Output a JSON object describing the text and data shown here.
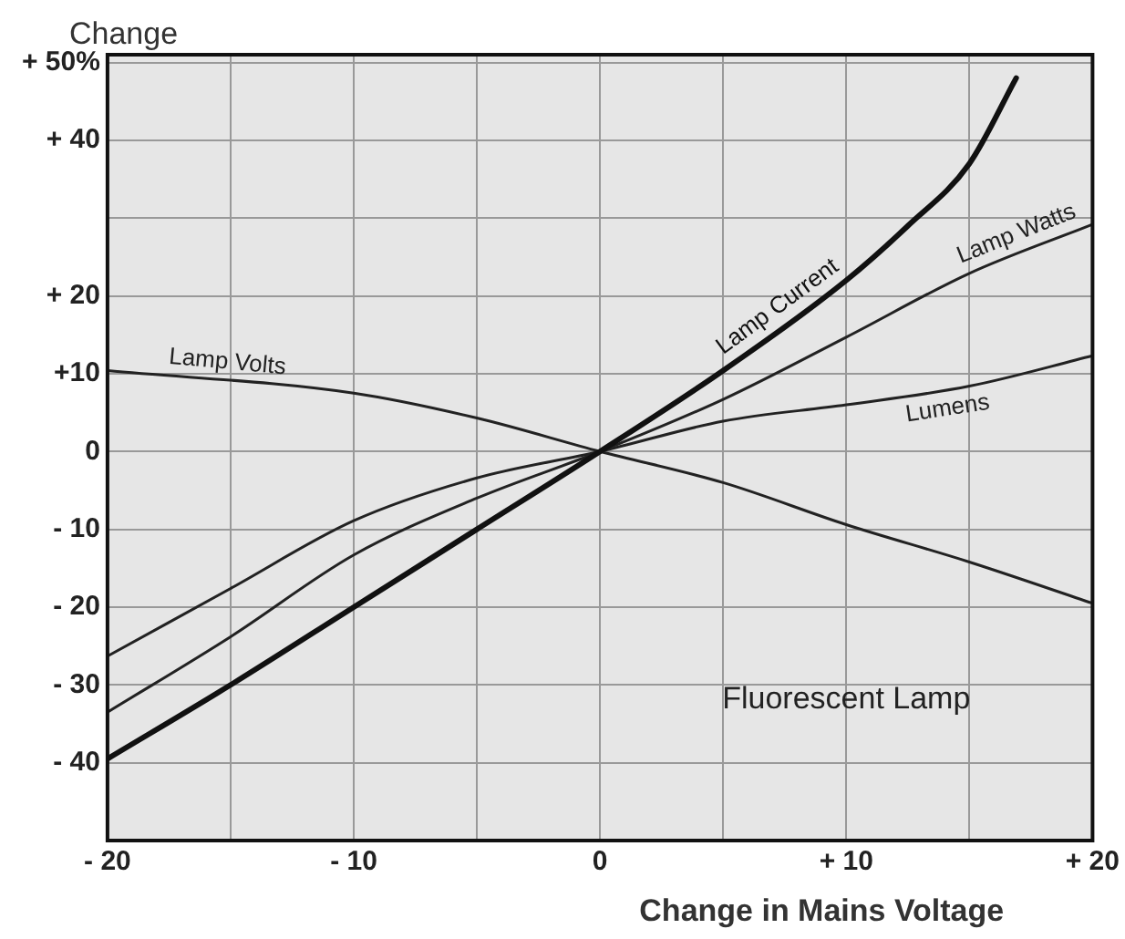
{
  "chart_data": {
    "type": "line",
    "ylabel": "Change",
    "xlabel": "Change in Mains Voltage",
    "annotations": [
      "Fluorescent Lamp"
    ],
    "xlim": [
      -20,
      20
    ],
    "ylim": [
      -50,
      51
    ],
    "xticks": [
      {
        "value": -20,
        "label": "- 20"
      },
      {
        "value": -15,
        "label": null
      },
      {
        "value": -10,
        "label": "- 10"
      },
      {
        "value": -5,
        "label": null
      },
      0,
      {
        "value": 5,
        "label": null
      },
      {
        "value": 10,
        "label": "+ 10"
      },
      {
        "value": 15,
        "label": null
      },
      {
        "value": 20,
        "label": "+ 20"
      }
    ],
    "yticks": [
      {
        "value": -40,
        "label": "- 40"
      },
      {
        "value": -30,
        "label": "- 30"
      },
      {
        "value": -20,
        "label": "- 20"
      },
      {
        "value": -10,
        "label": "- 10"
      },
      0,
      {
        "value": 10,
        "label": "+10"
      },
      {
        "value": 20,
        "label": "+ 20"
      },
      {
        "value": 30,
        "label": null
      },
      {
        "value": 40,
        "label": "+ 40"
      },
      {
        "value": 50,
        "label": "+ 50%"
      }
    ],
    "grid": true,
    "legend": false,
    "marker": "none",
    "line_style": "solid",
    "series": [
      {
        "name": "Lamp Current",
        "color": "#111111",
        "x": [
          -20,
          -15,
          -10,
          -5,
          0,
          5,
          10,
          12.5,
          15,
          16.9
        ],
        "values": [
          -39.5,
          -30,
          -20,
          -10,
          0,
          10.4,
          22,
          29,
          37,
          48
        ]
      },
      {
        "name": "Lamp Watts",
        "color": "#222222",
        "x": [
          -20,
          -15,
          -10,
          -5,
          0,
          5,
          10,
          15,
          20
        ],
        "values": [
          -33.5,
          -23.8,
          -13.3,
          -6,
          0,
          6.7,
          14.7,
          22.9,
          29.2
        ]
      },
      {
        "name": "Lumens",
        "color": "#222222",
        "x": [
          -20,
          -15,
          -10,
          -5,
          0,
          5,
          10,
          15,
          20
        ],
        "values": [
          -26.3,
          -17.6,
          -8.9,
          -3.4,
          0,
          3.9,
          6,
          8.4,
          12.3
        ]
      },
      {
        "name": "Lamp Volts",
        "color": "#222222",
        "x": [
          -20,
          -10,
          -5,
          0,
          5,
          10,
          15,
          20
        ],
        "values": [
          10.4,
          7.5,
          4.3,
          0,
          -4,
          -9.4,
          -14.2,
          -19.5
        ]
      }
    ]
  }
}
